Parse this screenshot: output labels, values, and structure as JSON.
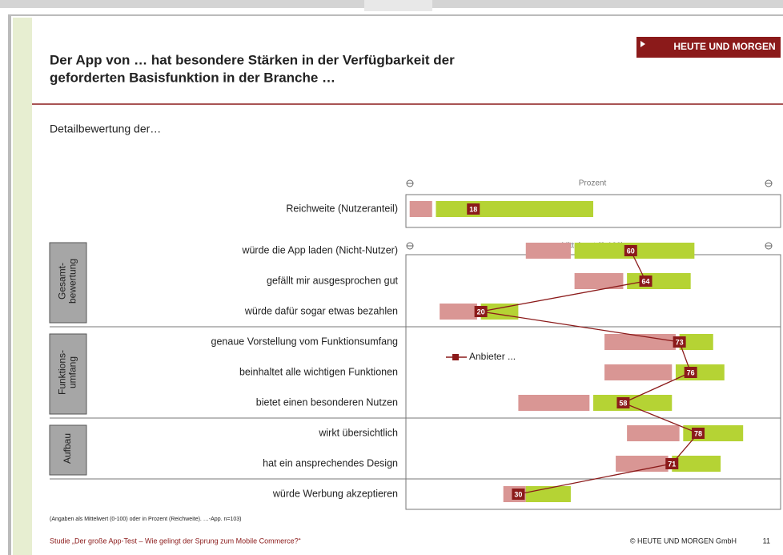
{
  "title": [
    "Der App von … hat besondere Stärken in der Verfügbarkeit der",
    "geforderten Basisfunktion in der Branche …"
  ],
  "logo": "HEUTE UND MORGEN",
  "subtitle": "Detailbewertung der…",
  "footnote": "(Angaben als Mittelwert (0-100) oder in Prozent (Reichweite). …-App. n=103)",
  "footer": {
    "left": "Studie „Der große App-Test – Wie gelingt der Sprung zum Mobile Commerce?“",
    "right": "© HEUTE UND MORGEN GmbH",
    "page": "11"
  },
  "chart_data": {
    "type": "range-bar",
    "xlim": [
      0,
      100
    ],
    "reach_axis_label": "Prozent",
    "axis_label": "Mittelwert (0-100)",
    "legend": "Anbieter ...",
    "color": "#8b1a1a",
    "reach": {
      "label": "Reichweite (Nutzeranteil)",
      "pink": [
        1,
        7
      ],
      "green": [
        8,
        50
      ],
      "value": 18
    },
    "groups": [
      {
        "label": [
          "Gesamt-",
          "bewertung"
        ],
        "rows": [
          {
            "label": "würde die App laden (Nicht-Nutzer)",
            "pink": [
              32,
              44
            ],
            "green": [
              45,
              77
            ],
            "value": 60
          },
          {
            "label": "gefällt mir ausgesprochen gut",
            "pink": [
              45,
              58
            ],
            "green": [
              59,
              76
            ],
            "value": 64
          },
          {
            "label": "würde dafür sogar etwas bezahlen",
            "pink": [
              9,
              19
            ],
            "green": [
              20,
              30
            ],
            "value": 20
          }
        ]
      },
      {
        "label": [
          "Funktions-",
          "umfang"
        ],
        "rows": [
          {
            "label": "genaue Vorstellung vom Funktionsumfang",
            "pink": [
              53,
              72
            ],
            "green": [
              73,
              82
            ],
            "value": 73
          },
          {
            "label": "beinhaltet alle wichtigen Funktionen",
            "pink": [
              53,
              71
            ],
            "green": [
              72,
              85
            ],
            "value": 76
          },
          {
            "label": "bietet einen besonderen Nutzen",
            "pink": [
              30,
              49
            ],
            "green": [
              50,
              71
            ],
            "value": 58
          }
        ]
      },
      {
        "label": [
          "Aufbau"
        ],
        "rows": [
          {
            "label": "wirkt übersichtlich",
            "pink": [
              59,
              73
            ],
            "green": [
              74,
              90
            ],
            "value": 78
          },
          {
            "label": "hat ein ansprechendes Design",
            "pink": [
              56,
              70
            ],
            "green": [
              71,
              84
            ],
            "value": 71
          }
        ]
      },
      {
        "rows": [
          {
            "label": "würde Werbung akzeptieren",
            "pink": [
              26,
              32
            ],
            "green": [
              32,
              44
            ],
            "value": 30
          }
        ]
      }
    ]
  }
}
